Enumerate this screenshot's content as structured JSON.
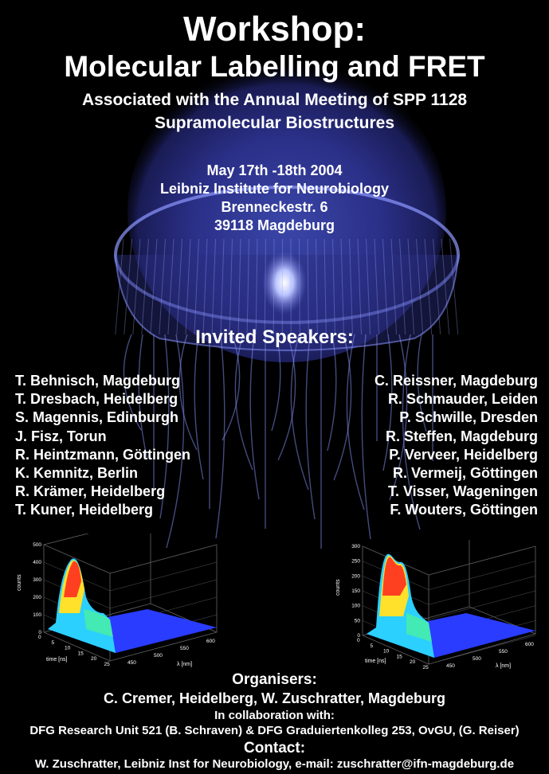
{
  "title_line1": "Workshop:",
  "title_line2": "Molecular Labelling and FRET",
  "subtitle_line1": "Associated with the Annual Meeting of SPP 1128",
  "subtitle_line2": "Supramolecular Biostructures",
  "event": {
    "date": "May 17th -18th 2004",
    "institute": "Leibniz Institute for Neurobiology",
    "street": "Brenneckestr. 6",
    "city": "39118 Magdeburg"
  },
  "invited_heading": "Invited Speakers:",
  "speakers_left": [
    "T. Behnisch, Magdeburg",
    "T. Dresbach, Heidelberg",
    "S. Magennis, Edinburgh",
    "J. Fisz, Torun",
    "R. Heintzmann, Göttingen",
    "K. Kemnitz, Berlin",
    "R. Krämer, Heidelberg",
    "T. Kuner, Heidelberg"
  ],
  "speakers_right": [
    "C. Reissner, Magdeburg",
    "R. Schmauder, Leiden",
    "P. Schwille, Dresden",
    "R. Steffen, Magdeburg",
    "P. Verveer, Heidelberg",
    "R. Vermeij, Göttingen",
    "T. Visser, Wageningen",
    "F. Wouters, Göttingen"
  ],
  "organisers_heading": "Organisers:",
  "organisers": "C. Cremer, Heidelberg, W. Zuschratter, Magdeburg",
  "collaboration_heading": "In collaboration with:",
  "collaboration": "DFG Research Unit 521 (B. Schraven) & DFG Graduiertenkolleg 253, OvGU, (G. Reiser)",
  "contact_heading": "Contact:",
  "contact": "W. Zuschratter, Leibniz Inst for Neurobiology, e-mail: zuschratter@ifn-magdeburg.de",
  "colors": {
    "background": "#000000",
    "text": "#ffffff",
    "jellyfish_glow": "#6a7ce0"
  },
  "chart_data": [
    {
      "type": "surface3d",
      "z_ticks": [
        "500",
        "400",
        "300",
        "200",
        "100",
        "0"
      ],
      "zlabel": "counts",
      "time_ticks": [
        "0",
        "5",
        "10",
        "15",
        "20",
        "25"
      ],
      "xlabel": "time [ns]",
      "lambda_ticks": [
        "450",
        "500",
        "550",
        "600"
      ],
      "ylabel": "λ [nm]",
      "zlim": [
        0,
        500
      ],
      "peak_counts": 420,
      "peak_time_ns": 3
    },
    {
      "type": "surface3d",
      "z_ticks": [
        "300",
        "250",
        "200",
        "150",
        "100",
        "50",
        "0"
      ],
      "zlabel": "counts",
      "time_ticks": [
        "0",
        "5",
        "10",
        "15",
        "20",
        "25"
      ],
      "xlabel": "time [ns]",
      "lambda_ticks": [
        "450",
        "500",
        "550",
        "600"
      ],
      "ylabel": "λ [nm]",
      "zlim": [
        0,
        300
      ],
      "peak_counts": 280,
      "peak_time_ns": 3
    }
  ]
}
